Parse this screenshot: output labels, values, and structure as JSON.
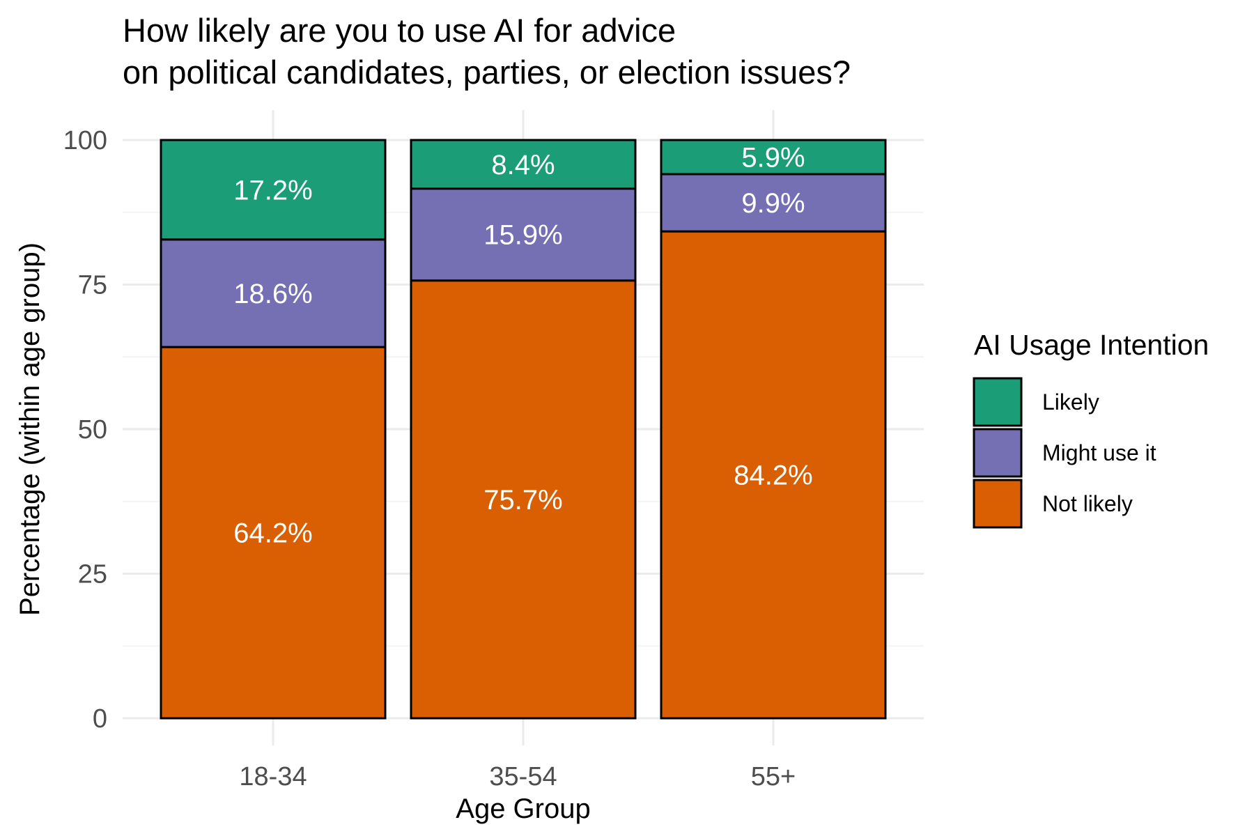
{
  "chart_data": {
    "type": "bar",
    "stacked": true,
    "title_lines": [
      "How likely are you to use AI for advice",
      "on political candidates, parties, or election issues?"
    ],
    "xlabel": "Age Group",
    "ylabel": "Percentage (within age group)",
    "categories": [
      "18-34",
      "35-54",
      "55+"
    ],
    "ylim": [
      0,
      100
    ],
    "yticks": [
      "0",
      "25",
      "50",
      "75",
      "100"
    ],
    "grid": true,
    "legend": {
      "title": "AI Usage Intention",
      "position": "right"
    },
    "series": [
      {
        "name": "Not likely",
        "color": "#d95f02",
        "values": [
          64.2,
          75.7,
          84.2
        ],
        "labels": [
          "64.2%",
          "75.7%",
          "84.2%"
        ]
      },
      {
        "name": "Might use it",
        "color": "#7570b3",
        "values": [
          18.6,
          15.9,
          9.9
        ],
        "labels": [
          "18.6%",
          "15.9%",
          "9.9%"
        ]
      },
      {
        "name": "Likely",
        "color": "#1b9e77",
        "values": [
          17.2,
          8.4,
          5.9
        ],
        "labels": [
          "17.2%",
          "8.4%",
          "5.9%"
        ]
      }
    ],
    "legend_order": [
      "Likely",
      "Might use it",
      "Not likely"
    ]
  }
}
